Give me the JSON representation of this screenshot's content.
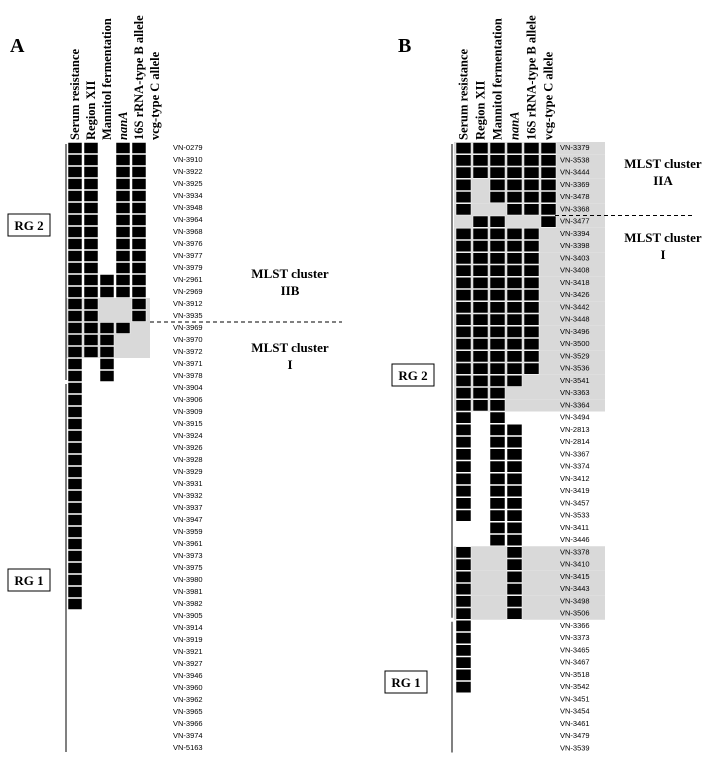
{
  "panels": [
    {
      "label": "A",
      "columns": [
        "Serum resistance",
        "Region XII",
        "Mannitol fermentation",
        "nanA",
        "16S rRNA-type B allele",
        "vcg-type C allele"
      ],
      "strains": [
        "VN-0279",
        "VN-3910",
        "VN-3922",
        "VN-3925",
        "VN-3934",
        "VN-3948",
        "VN-3964",
        "VN-3968",
        "VN-3976",
        "VN-3977",
        "VN-3979",
        "VN-2961",
        "VN-2969",
        "VN-3912",
        "VN-3935",
        "VN-3969",
        "VN-3970",
        "VN-3972",
        "VN-3971",
        "VN-3978",
        "VN-3904",
        "VN-3906",
        "VN-3909",
        "VN-3915",
        "VN-3924",
        "VN-3926",
        "VN-3928",
        "VN-3929",
        "VN-3931",
        "VN-3932",
        "VN-3937",
        "VN-3947",
        "VN-3959",
        "VN-3961",
        "VN-3973",
        "VN-3975",
        "VN-3980",
        "VN-3981",
        "VN-3982",
        "VN-3905",
        "VN-3914",
        "VN-3919",
        "VN-3921",
        "VN-3927",
        "VN-3946",
        "VN-3960",
        "VN-3962",
        "VN-3965",
        "VN-3966",
        "VN-3974",
        "VN-5163"
      ],
      "matrix": [
        [
          1,
          1,
          0,
          1,
          1,
          0
        ],
        [
          1,
          1,
          0,
          1,
          1,
          0
        ],
        [
          1,
          1,
          0,
          1,
          1,
          0
        ],
        [
          1,
          1,
          0,
          1,
          1,
          0
        ],
        [
          1,
          1,
          0,
          1,
          1,
          0
        ],
        [
          1,
          1,
          0,
          1,
          1,
          0
        ],
        [
          1,
          1,
          0,
          1,
          1,
          0
        ],
        [
          1,
          1,
          0,
          1,
          1,
          0
        ],
        [
          1,
          1,
          0,
          1,
          1,
          0
        ],
        [
          1,
          1,
          0,
          1,
          1,
          0
        ],
        [
          1,
          1,
          0,
          1,
          1,
          0
        ],
        [
          1,
          1,
          1,
          1,
          1,
          0
        ],
        [
          1,
          1,
          1,
          1,
          1,
          0
        ],
        [
          1,
          1,
          0,
          0,
          1,
          0
        ],
        [
          1,
          1,
          0,
          0,
          1,
          0
        ],
        [
          1,
          1,
          1,
          1,
          0,
          0
        ],
        [
          1,
          1,
          1,
          0,
          0,
          0
        ],
        [
          1,
          1,
          1,
          0,
          0,
          0
        ],
        [
          1,
          0,
          1,
          0,
          0,
          0
        ],
        [
          1,
          0,
          1,
          0,
          0,
          0
        ],
        [
          1,
          0,
          0,
          0,
          0,
          0
        ],
        [
          1,
          0,
          0,
          0,
          0,
          0
        ],
        [
          1,
          0,
          0,
          0,
          0,
          0
        ],
        [
          1,
          0,
          0,
          0,
          0,
          0
        ],
        [
          1,
          0,
          0,
          0,
          0,
          0
        ],
        [
          1,
          0,
          0,
          0,
          0,
          0
        ],
        [
          1,
          0,
          0,
          0,
          0,
          0
        ],
        [
          1,
          0,
          0,
          0,
          0,
          0
        ],
        [
          1,
          0,
          0,
          0,
          0,
          0
        ],
        [
          1,
          0,
          0,
          0,
          0,
          0
        ],
        [
          1,
          0,
          0,
          0,
          0,
          0
        ],
        [
          1,
          0,
          0,
          0,
          0,
          0
        ],
        [
          1,
          0,
          0,
          0,
          0,
          0
        ],
        [
          1,
          0,
          0,
          0,
          0,
          0
        ],
        [
          1,
          0,
          0,
          0,
          0,
          0
        ],
        [
          1,
          0,
          0,
          0,
          0,
          0
        ],
        [
          1,
          0,
          0,
          0,
          0,
          0
        ],
        [
          1,
          0,
          0,
          0,
          0,
          0
        ],
        [
          1,
          0,
          0,
          0,
          0,
          0
        ],
        [
          0,
          0,
          0,
          0,
          0,
          0
        ],
        [
          0,
          0,
          0,
          0,
          0,
          0
        ],
        [
          0,
          0,
          0,
          0,
          0,
          0
        ],
        [
          0,
          0,
          0,
          0,
          0,
          0
        ],
        [
          0,
          0,
          0,
          0,
          0,
          0
        ],
        [
          0,
          0,
          0,
          0,
          0,
          0
        ],
        [
          0,
          0,
          0,
          0,
          0,
          0
        ],
        [
          0,
          0,
          0,
          0,
          0,
          0
        ],
        [
          0,
          0,
          0,
          0,
          0,
          0
        ],
        [
          0,
          0,
          0,
          0,
          0,
          0
        ],
        [
          0,
          0,
          0,
          0,
          0,
          0
        ],
        [
          0,
          0,
          0,
          0,
          0,
          0
        ]
      ],
      "shaded": [
        false,
        false,
        false,
        false,
        false,
        false,
        false,
        false,
        false,
        false,
        false,
        false,
        false,
        true,
        true,
        true,
        true,
        true,
        false,
        false,
        false,
        false,
        false,
        false,
        false,
        false,
        false,
        false,
        false,
        false,
        false,
        false,
        false,
        false,
        false,
        false,
        false,
        false,
        false,
        false,
        false,
        false,
        false,
        false,
        false,
        false,
        false,
        false,
        false,
        false,
        false
      ],
      "groups": [
        "RG 2",
        "RG 1"
      ],
      "clusters": [
        [
          "MLST cluster",
          "IIB"
        ],
        [
          "MLST cluster",
          "I"
        ]
      ]
    },
    {
      "label": "B",
      "columns": [
        "Serum resistance",
        "Region XII",
        "Mannitol fermentation",
        "nanA",
        "16S rRNA-type B allele",
        "vcg-type C allele"
      ],
      "strains": [
        "VN-3379",
        "VN-3538",
        "VN-3444",
        "VN-3369",
        "VN-3478",
        "VN-3368",
        "VN-3477",
        "VN-3394",
        "VN-3398",
        "VN-3403",
        "VN-3408",
        "VN-3418",
        "VN-3426",
        "VN-3442",
        "VN-3448",
        "VN-3496",
        "VN-3500",
        "VN-3529",
        "VN-3536",
        "VN-3541",
        "VN-3363",
        "VN-3364",
        "VN-3494",
        "VN-2813",
        "VN-2814",
        "VN-3367",
        "VN-3374",
        "VN-3412",
        "VN-3419",
        "VN-3457",
        "VN-3533",
        "VN-3411",
        "VN-3446",
        "VN-3378",
        "VN-3410",
        "VN-3415",
        "VN-3443",
        "VN-3498",
        "VN-3506",
        "VN-3366",
        "VN-3373",
        "VN-3465",
        "VN-3467",
        "VN-3518",
        "VN-3542",
        "VN-3451",
        "VN-3454",
        "VN-3461",
        "VN-3479",
        "VN-3539"
      ],
      "matrix": [
        [
          1,
          1,
          1,
          1,
          1,
          1
        ],
        [
          1,
          1,
          1,
          1,
          1,
          1
        ],
        [
          1,
          1,
          1,
          1,
          1,
          1
        ],
        [
          1,
          0,
          1,
          1,
          1,
          1
        ],
        [
          1,
          0,
          1,
          1,
          1,
          1
        ],
        [
          1,
          0,
          0,
          1,
          1,
          1
        ],
        [
          0,
          1,
          1,
          0,
          0,
          1
        ],
        [
          1,
          1,
          1,
          1,
          1,
          0
        ],
        [
          1,
          1,
          1,
          1,
          1,
          0
        ],
        [
          1,
          1,
          1,
          1,
          1,
          0
        ],
        [
          1,
          1,
          1,
          1,
          1,
          0
        ],
        [
          1,
          1,
          1,
          1,
          1,
          0
        ],
        [
          1,
          1,
          1,
          1,
          1,
          0
        ],
        [
          1,
          1,
          1,
          1,
          1,
          0
        ],
        [
          1,
          1,
          1,
          1,
          1,
          0
        ],
        [
          1,
          1,
          1,
          1,
          1,
          0
        ],
        [
          1,
          1,
          1,
          1,
          1,
          0
        ],
        [
          1,
          1,
          1,
          1,
          1,
          0
        ],
        [
          1,
          1,
          1,
          1,
          1,
          0
        ],
        [
          1,
          1,
          1,
          1,
          0,
          0
        ],
        [
          1,
          1,
          1,
          0,
          0,
          0
        ],
        [
          1,
          1,
          1,
          0,
          0,
          0
        ],
        [
          1,
          0,
          1,
          0,
          0,
          0
        ],
        [
          1,
          0,
          1,
          1,
          0,
          0
        ],
        [
          1,
          0,
          1,
          1,
          0,
          0
        ],
        [
          1,
          0,
          1,
          1,
          0,
          0
        ],
        [
          1,
          0,
          1,
          1,
          0,
          0
        ],
        [
          1,
          0,
          1,
          1,
          0,
          0
        ],
        [
          1,
          0,
          1,
          1,
          0,
          0
        ],
        [
          1,
          0,
          1,
          1,
          0,
          0
        ],
        [
          1,
          0,
          1,
          1,
          0,
          0
        ],
        [
          0,
          0,
          1,
          1,
          0,
          0
        ],
        [
          0,
          0,
          1,
          1,
          0,
          0
        ],
        [
          1,
          0,
          0,
          1,
          0,
          0
        ],
        [
          1,
          0,
          0,
          1,
          0,
          0
        ],
        [
          1,
          0,
          0,
          1,
          0,
          0
        ],
        [
          1,
          0,
          0,
          1,
          0,
          0
        ],
        [
          1,
          0,
          0,
          1,
          0,
          0
        ],
        [
          1,
          0,
          0,
          1,
          0,
          0
        ],
        [
          1,
          0,
          0,
          0,
          0,
          0
        ],
        [
          1,
          0,
          0,
          0,
          0,
          0
        ],
        [
          1,
          0,
          0,
          0,
          0,
          0
        ],
        [
          1,
          0,
          0,
          0,
          0,
          0
        ],
        [
          1,
          0,
          0,
          0,
          0,
          0
        ],
        [
          1,
          0,
          0,
          0,
          0,
          0
        ],
        [
          0,
          0,
          0,
          0,
          0,
          0
        ],
        [
          0,
          0,
          0,
          0,
          0,
          0
        ],
        [
          0,
          0,
          0,
          0,
          0,
          0
        ],
        [
          0,
          0,
          0,
          0,
          0,
          0
        ],
        [
          0,
          0,
          0,
          0,
          0,
          0
        ]
      ],
      "shaded": [
        true,
        true,
        true,
        true,
        true,
        true,
        true,
        true,
        true,
        true,
        true,
        true,
        true,
        true,
        true,
        true,
        true,
        true,
        true,
        true,
        true,
        true,
        false,
        false,
        false,
        false,
        false,
        false,
        false,
        false,
        false,
        false,
        false,
        true,
        true,
        true,
        true,
        true,
        true,
        false,
        false,
        false,
        false,
        false,
        false,
        false,
        false,
        false,
        false,
        false
      ],
      "groups": [
        "RG 2",
        "RG 1"
      ],
      "clusters": [
        [
          "MLST cluster",
          "IIA"
        ],
        [
          "MLST cluster",
          "I"
        ]
      ]
    }
  ]
}
